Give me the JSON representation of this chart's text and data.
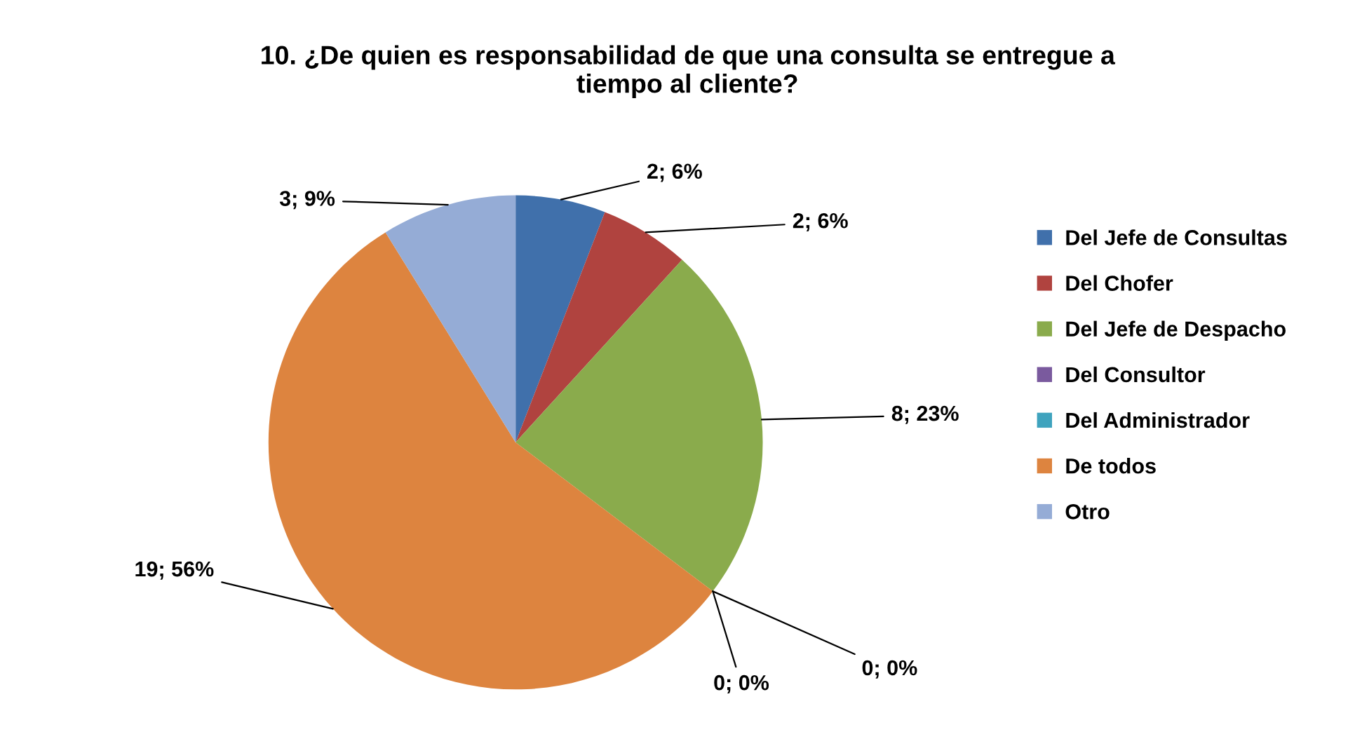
{
  "chart_data": {
    "type": "pie",
    "title": "10. ¿De quien es responsabilidad de que una consulta se entregue a\ntiempo al cliente?",
    "categories": [
      "Del Jefe de Consultas",
      "Del Chofer",
      "Del Jefe de Despacho",
      "Del Consultor",
      "Del Administrador",
      "De todos",
      "Otro"
    ],
    "values": [
      2,
      2,
      8,
      0,
      0,
      19,
      3
    ],
    "colors": [
      "#4070ab",
      "#b0433f",
      "#8aab4c",
      "#7a5a9e",
      "#3fa3be",
      "#dd843f",
      "#95acd6"
    ],
    "value_labels": [
      "2; 6%",
      "2; 6%",
      "8; 23%",
      "0; 0%",
      "0; 0%",
      "19; 56%",
      "3; 9%"
    ],
    "legend": "right"
  }
}
